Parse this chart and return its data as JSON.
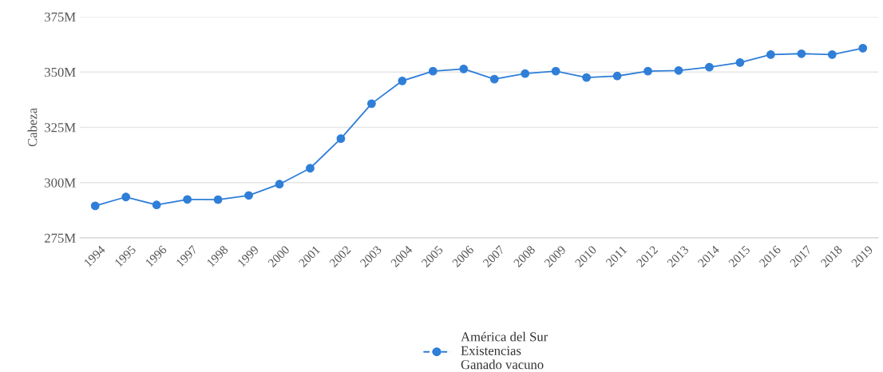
{
  "chart_data": {
    "type": "line",
    "ylabel": "Cabeza",
    "categories": [
      "1994",
      "1995",
      "1996",
      "1997",
      "1998",
      "1999",
      "2000",
      "2001",
      "2002",
      "2003",
      "2004",
      "2005",
      "2006",
      "2007",
      "2008",
      "2009",
      "2010",
      "2011",
      "2012",
      "2013",
      "2014",
      "2015",
      "2016",
      "2017",
      "2018",
      "2019"
    ],
    "series": [
      {
        "name": "América del Sur\nExistencias\nGanado vacuno",
        "color": "#2f7ed8",
        "values": [
          289.5,
          293.5,
          289.9,
          292.4,
          292.3,
          294.2,
          299.3,
          306.5,
          319.9,
          335.7,
          346.0,
          350.4,
          351.4,
          346.8,
          349.3,
          350.4,
          347.5,
          348.2,
          350.4,
          350.7,
          352.2,
          354.3,
          357.9,
          358.3,
          357.9,
          360.8
        ]
      }
    ],
    "ylim": [
      275,
      375
    ],
    "yticks": [
      {
        "value": 275,
        "label": "275M"
      },
      {
        "value": 300,
        "label": "300M"
      },
      {
        "value": 325,
        "label": "325M"
      },
      {
        "value": 350,
        "label": "350M"
      },
      {
        "value": 375,
        "label": "375M"
      }
    ],
    "grid": "y",
    "legend": "bottom",
    "marker": "circle",
    "line_style": "solid"
  }
}
